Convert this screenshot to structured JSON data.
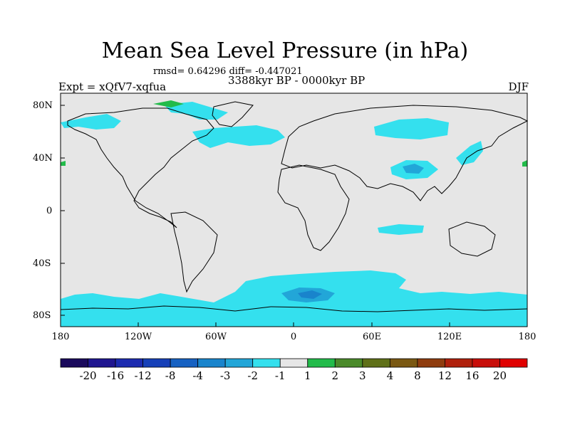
{
  "title": "Mean Sea Level Pressure (in hPa)",
  "stats": "rmsd= 0.64296 diff= -0.447021",
  "period": "3388kyr BP - 0000kyr BP",
  "experiment": "Expt = xQfV7-xqfua",
  "season": "DJF",
  "map": {
    "projection": "cylindrical equidistant",
    "background_color": "#e6e6e6",
    "lon_range": [
      -180,
      180
    ],
    "lat_range": [
      -90,
      90
    ],
    "x_ticks": [
      "180",
      "120W",
      "60W",
      "0",
      "60E",
      "120E",
      "180"
    ],
    "y_ticks": [
      "80N",
      "40N",
      "0",
      "40S",
      "80S"
    ]
  },
  "colorbar": {
    "labels": [
      "-20",
      "-16",
      "-12",
      "-8",
      "-4",
      "-3",
      "-2",
      "-1",
      "1",
      "2",
      "3",
      "4",
      "8",
      "12",
      "16",
      "20"
    ],
    "colors": [
      "#1a0a5c",
      "#1f1690",
      "#1c2bb0",
      "#1640b8",
      "#1661c2",
      "#1984cc",
      "#22a6d8",
      "#34e0ee",
      "#e6e6e6",
      "#22bb4a",
      "#4a8a2a",
      "#5f7018",
      "#7a5812",
      "#8f3c0e",
      "#b0200c",
      "#c80e0a",
      "#e00000"
    ]
  }
}
